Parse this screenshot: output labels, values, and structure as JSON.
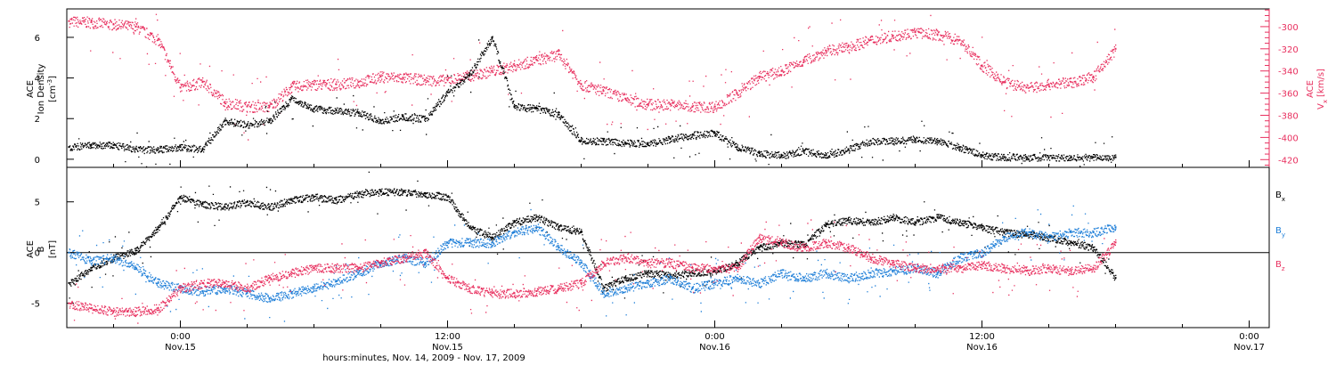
{
  "figure": {
    "xlabel": "hours:minutes, Nov. 14, 2009 - Nov. 17, 2009",
    "time_ticks": [
      {
        "t": 0,
        "time": "0:00",
        "date": "Nov.15"
      },
      {
        "t": 12,
        "time": "12:00",
        "date": "Nov.15"
      },
      {
        "t": 24,
        "time": "0:00",
        "date": "Nov.16"
      },
      {
        "t": 36,
        "time": "12:00",
        "date": "Nov.16"
      },
      {
        "t": 48,
        "time": "0:00",
        "date": "Nov.17"
      }
    ],
    "colors": {
      "black": "#000000",
      "pink": "#e8305f",
      "blue": "#1f7fd8"
    }
  },
  "chart_data": [
    {
      "type": "scatter",
      "panel": "top",
      "xlim": [
        -5.1,
        48.9
      ],
      "ylabel_lines": [
        "ACE",
        "Ion Density"
      ],
      "yunit_base": "[cm",
      "yunit_sup": "-3",
      "yunit_end": "]",
      "ylim": [
        -0.4,
        7.4
      ],
      "yticks": [
        0,
        2,
        4,
        6
      ],
      "ylabel_right_lines": [
        "ACE",
        "V"
      ],
      "ylabel_right_sub": "x",
      "yunit_right": "[km/s]",
      "ylim_right": [
        -427,
        -284
      ],
      "yticks_right": [
        -420,
        -400,
        -380,
        -360,
        -340,
        -320,
        -300
      ],
      "series": [
        {
          "color": "black",
          "axis": "left",
          "x": [
            -5,
            -4,
            -3,
            -2,
            -1,
            0,
            1,
            2,
            3,
            4,
            5,
            6,
            7,
            8,
            9,
            10,
            11,
            12,
            13,
            14,
            15,
            16,
            17,
            18,
            19,
            20,
            21,
            22,
            23,
            24,
            25,
            26,
            27,
            28,
            29,
            30,
            31,
            32,
            33,
            34,
            35,
            36,
            37,
            38,
            39,
            40,
            41,
            42
          ],
          "y": [
            0.6,
            0.7,
            0.7,
            0.5,
            0.5,
            0.6,
            0.5,
            1.9,
            1.7,
            1.9,
            3.0,
            2.5,
            2.4,
            2.3,
            1.9,
            2.1,
            2.0,
            3.3,
            4.2,
            6.0,
            2.6,
            2.5,
            2.2,
            0.9,
            0.9,
            0.8,
            0.8,
            1.0,
            1.2,
            1.3,
            0.6,
            0.3,
            0.2,
            0.4,
            0.2,
            0.5,
            0.9,
            0.9,
            1.0,
            0.9,
            0.6,
            0.2,
            0.1,
            0.1,
            0.1,
            0.1,
            0.1,
            0.1
          ]
        },
        {
          "color": "pink",
          "axis": "right",
          "x": [
            -5,
            -4,
            -3,
            -2,
            -1,
            0,
            1,
            2,
            3,
            4,
            5,
            6,
            7,
            8,
            9,
            10,
            11,
            12,
            13,
            14,
            15,
            16,
            17,
            18,
            19,
            20,
            21,
            22,
            23,
            24,
            25,
            26,
            27,
            28,
            29,
            30,
            31,
            32,
            33,
            34,
            35,
            36,
            37,
            38,
            39,
            40,
            41,
            42
          ],
          "y": [
            -295,
            -296,
            -298,
            -300,
            -312,
            -355,
            -350,
            -368,
            -372,
            -372,
            -354,
            -352,
            -352,
            -350,
            -345,
            -346,
            -348,
            -348,
            -344,
            -340,
            -335,
            -330,
            -325,
            -352,
            -358,
            -365,
            -370,
            -370,
            -372,
            -372,
            -360,
            -345,
            -340,
            -330,
            -322,
            -318,
            -312,
            -308,
            -305,
            -307,
            -312,
            -335,
            -350,
            -355,
            -352,
            -350,
            -345,
            -320
          ]
        }
      ]
    },
    {
      "type": "scatter",
      "panel": "bottom",
      "xlim": [
        -5.1,
        48.9
      ],
      "ylabel_lines": [
        "ACE",
        "B"
      ],
      "yunit": "[nT]",
      "ylim": [
        -7.4,
        8.4
      ],
      "yticks": [
        -5,
        0,
        5
      ],
      "zero_line": true,
      "legend_position": "right",
      "series": [
        {
          "name": "B",
          "name_sub": "x",
          "color": "black",
          "x": [
            -5,
            -4,
            -3,
            -2,
            -1,
            0,
            1,
            2,
            3,
            4,
            5,
            6,
            7,
            8,
            9,
            10,
            11,
            12,
            13,
            14,
            15,
            16,
            17,
            18,
            19,
            20,
            21,
            22,
            23,
            24,
            25,
            26,
            27,
            28,
            29,
            30,
            31,
            32,
            33,
            34,
            35,
            36,
            37,
            38,
            39,
            40,
            41,
            42
          ],
          "y": [
            -3.0,
            -1.5,
            -0.5,
            0.2,
            2.5,
            5.5,
            4.8,
            4.5,
            5.0,
            4.5,
            5.2,
            5.5,
            5.2,
            5.8,
            6.0,
            6.0,
            5.8,
            5.5,
            2.5,
            1.5,
            3.0,
            3.5,
            2.5,
            2.0,
            -3.5,
            -2.5,
            -2.0,
            -2.2,
            -2.0,
            -1.8,
            -1.0,
            0.5,
            1.0,
            0.8,
            2.8,
            3.2,
            3.0,
            3.5,
            3.0,
            3.5,
            3.0,
            2.5,
            2.0,
            1.8,
            1.5,
            1.0,
            0.5,
            -2.5
          ]
        },
        {
          "name": "B",
          "name_sub": "y",
          "color": "blue",
          "x": [
            -5,
            -4,
            -3,
            -2,
            -1,
            0,
            1,
            2,
            3,
            4,
            5,
            6,
            7,
            8,
            9,
            10,
            11,
            12,
            13,
            14,
            15,
            16,
            17,
            18,
            19,
            20,
            21,
            22,
            23,
            24,
            25,
            26,
            27,
            28,
            29,
            30,
            31,
            32,
            33,
            34,
            35,
            36,
            37,
            38,
            39,
            40,
            41,
            42
          ],
          "y": [
            0.0,
            -0.8,
            -0.5,
            -1.5,
            -3.0,
            -3.5,
            -3.8,
            -3.5,
            -4.0,
            -4.5,
            -4.0,
            -3.5,
            -2.8,
            -2.0,
            -1.0,
            -0.5,
            -1.0,
            1.0,
            1.0,
            1.0,
            2.0,
            2.5,
            0.5,
            -1.0,
            -4.0,
            -3.5,
            -3.0,
            -2.5,
            -3.5,
            -3.0,
            -2.5,
            -3.0,
            -2.0,
            -2.5,
            -2.0,
            -2.5,
            -2.0,
            -1.8,
            -1.5,
            -2.0,
            -0.5,
            0.0,
            1.5,
            2.0,
            1.5,
            2.0,
            2.0,
            2.5
          ]
        },
        {
          "name": "B",
          "name_sub": "z",
          "color": "pink",
          "x": [
            -5,
            -4,
            -3,
            -2,
            -1,
            0,
            1,
            2,
            3,
            4,
            5,
            6,
            7,
            8,
            9,
            10,
            11,
            12,
            13,
            14,
            15,
            16,
            17,
            18,
            19,
            20,
            21,
            22,
            23,
            24,
            25,
            26,
            27,
            28,
            29,
            30,
            31,
            32,
            33,
            34,
            35,
            36,
            37,
            38,
            39,
            40,
            41,
            42
          ],
          "y": [
            -5.0,
            -5.5,
            -5.8,
            -5.8,
            -5.5,
            -3.5,
            -3.0,
            -3.0,
            -3.5,
            -2.5,
            -2.0,
            -1.5,
            -1.5,
            -1.5,
            -1.0,
            -0.5,
            0.0,
            -2.5,
            -3.5,
            -4.0,
            -4.0,
            -3.8,
            -3.5,
            -3.0,
            -1.0,
            -0.5,
            -1.0,
            -1.0,
            -1.5,
            -1.5,
            -1.5,
            1.5,
            1.0,
            0.5,
            1.0,
            0.5,
            -0.5,
            -1.0,
            -1.5,
            -1.5,
            -1.5,
            -1.2,
            -1.5,
            -1.8,
            -1.5,
            -1.8,
            -1.5,
            1.0
          ]
        }
      ]
    }
  ]
}
